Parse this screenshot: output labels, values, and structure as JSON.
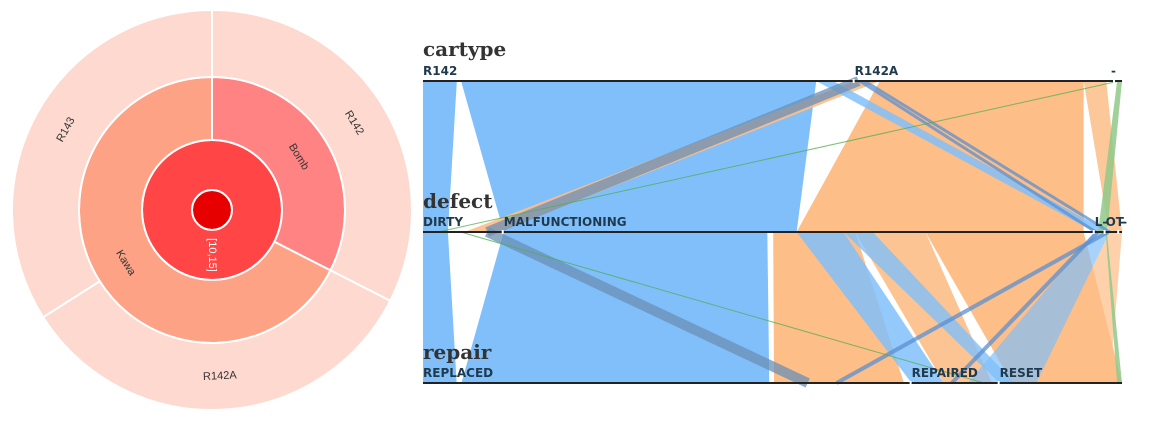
{
  "chart_data": [
    {
      "type": "sunburst",
      "levels": [
        {
          "segments": [
            {
              "label": "",
              "value": 1,
              "color": "#e60000"
            }
          ]
        },
        {
          "segments": [
            {
              "label": "[10,15]",
              "value": 1,
              "color": "#ff4545"
            }
          ]
        },
        {
          "segments": [
            {
              "label": "Bomb",
              "value": 0.325,
              "color": "#ff8383"
            },
            {
              "label": "Kawa",
              "value": 0.675,
              "color": "#fda285"
            }
          ]
        },
        {
          "segments": [
            {
              "label": "R142",
              "value": 0.325,
              "color": "#fdd9cf"
            },
            {
              "label": "R142A",
              "value": 0.335,
              "color": "#fdd9cf"
            },
            {
              "label": "R143",
              "value": 0.34,
              "color": "#fdd9cf"
            }
          ]
        }
      ]
    },
    {
      "type": "parallel-sets",
      "dimensions": [
        {
          "name": "cartype",
          "categories": [
            {
              "label": "R142",
              "share": 0.605
            },
            {
              "label": "R142A",
              "share": 0.36
            },
            {
              "label": "-",
              "share": 0.01
            }
          ]
        },
        {
          "name": "defect",
          "categories": [
            {
              "label": "DIRTY",
              "share": 0.108
            },
            {
              "label": "MALFUNCTIONING",
              "share": 0.838
            },
            {
              "label": "L-",
              "share": 0.008
            },
            {
              "label": "OT-",
              "share": 0.012
            },
            {
              "label": "-",
              "share": 0.004
            }
          ]
        },
        {
          "name": "repair",
          "categories": [
            {
              "label": "REPLACED",
              "share": 0.688
            },
            {
              "label": "REPAIRED",
              "share": 0.115
            },
            {
              "label": "RESET",
              "share": 0.175
            }
          ]
        }
      ],
      "colors": {
        "R142": "#80bffa",
        "R142A": "#fdbe87",
        "-": "#90c98a"
      }
    }
  ]
}
